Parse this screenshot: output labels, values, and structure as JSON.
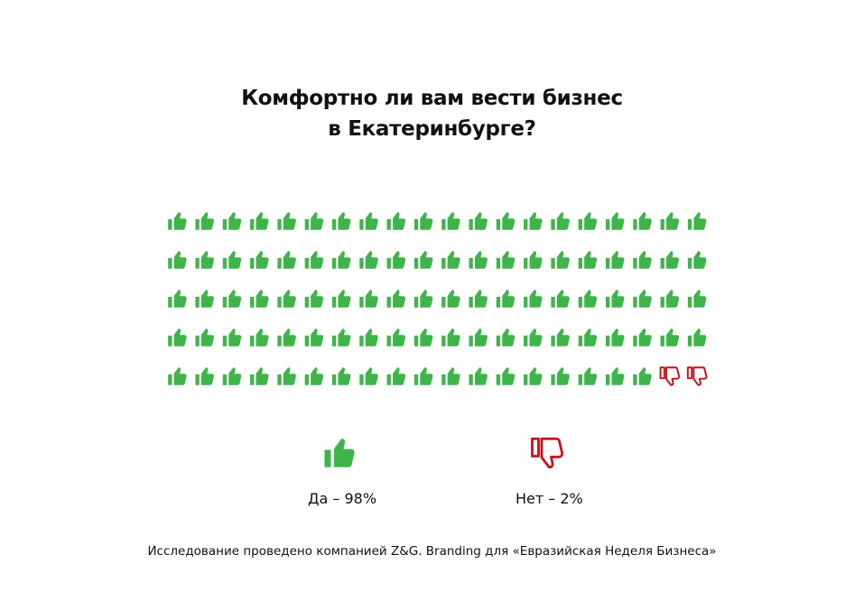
{
  "chart_data": {
    "type": "pictograph",
    "title_lines": [
      "Комфортно ли вам вести бизнес",
      "в Екатеринбурге?"
    ],
    "total_icons": 100,
    "icons_per_row": 20,
    "series": [
      {
        "name": "Да",
        "value": 98,
        "label": "Да – 98%",
        "icon": "thumbs-up-icon",
        "color": "#3fb44a"
      },
      {
        "name": "Нет",
        "value": 2,
        "label": "Нет – 2%",
        "icon": "thumbs-down-icon",
        "color": "#c8111a"
      }
    ]
  },
  "footer": "Исследование проведено компанией Z&G. Branding для «Евразийская Неделя Бизнеса»"
}
